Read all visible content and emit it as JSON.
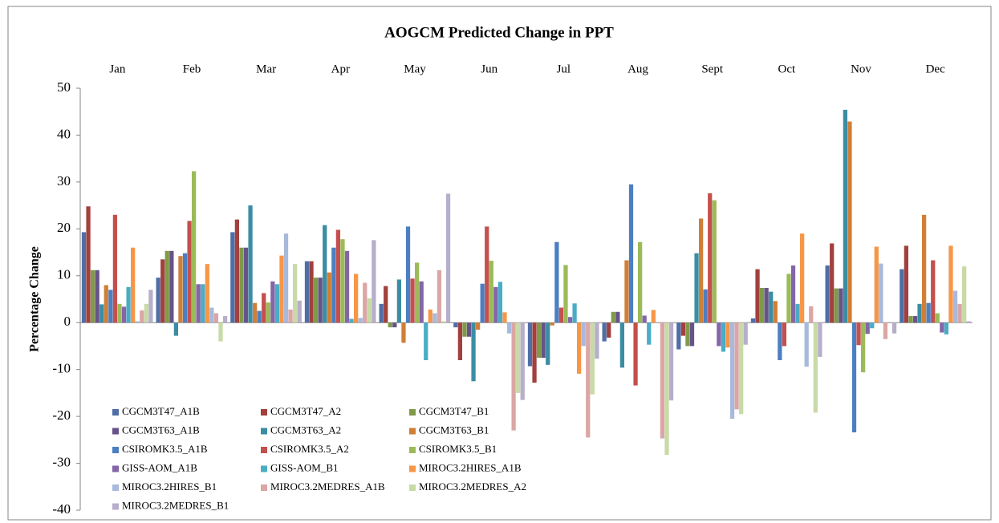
{
  "chart_data": {
    "type": "bar",
    "title": "AOGCM Predicted Change in PPT",
    "y_label": "Percentage Change",
    "categories": [
      "Jan",
      "Feb",
      "Mar",
      "Apr",
      "May",
      "Jun",
      "Jul",
      "Aug",
      "Sept",
      "Oct",
      "Nov",
      "Dec"
    ],
    "ylim": [
      -40,
      50
    ],
    "yticks": [
      -40,
      -30,
      -20,
      -10,
      0,
      10,
      20,
      30,
      40,
      50
    ],
    "series": [
      {
        "name": "CGCM3T47_A1B",
        "color": "#4f6ea6",
        "values": [
          19.3,
          9.6,
          19.3,
          13.1,
          4,
          -1,
          -9.3,
          -4,
          -5.7,
          0.9,
          12.2,
          11.4
        ]
      },
      {
        "name": "CGCM3T47_A2",
        "color": "#a1403d",
        "values": [
          24.8,
          13.5,
          22,
          13.1,
          7.8,
          -8,
          -12.8,
          -3.2,
          -2.8,
          11.4,
          16.9,
          16.4
        ]
      },
      {
        "name": "CGCM3T47_B1",
        "color": "#7f9a48",
        "values": [
          11.2,
          15.3,
          16,
          9.6,
          -1,
          -3,
          -7.5,
          2.3,
          -5,
          7.4,
          7.3,
          1.4
        ]
      },
      {
        "name": "CGCM3T63_A1B",
        "color": "#67538a",
        "values": [
          11.2,
          15.3,
          16,
          9.6,
          -1,
          -3,
          -7.5,
          2.3,
          -5,
          7.4,
          7.3,
          1.4
        ]
      },
      {
        "name": "CGCM3T63_A2",
        "color": "#3b8da3",
        "values": [
          3.9,
          -2.8,
          25,
          20.8,
          9.2,
          -12.5,
          -9,
          -9.6,
          14.8,
          6.6,
          45.4,
          4
        ]
      },
      {
        "name": "CGCM3T63_B1",
        "color": "#d07f36",
        "values": [
          8,
          14.2,
          4.2,
          10.7,
          -4.3,
          -1.5,
          -0.6,
          13.3,
          22.2,
          4.6,
          42.9,
          23
        ]
      },
      {
        "name": "CSIROMK3.5_A1B",
        "color": "#4c7fc1",
        "values": [
          7,
          14.8,
          2.5,
          16,
          20.5,
          8.3,
          17.2,
          29.5,
          7.1,
          -8,
          -23.4,
          4.2
        ]
      },
      {
        "name": "CSIROMK3.5_A2",
        "color": "#c4504d",
        "values": [
          23,
          21.7,
          6.3,
          19.8,
          9.4,
          20.5,
          3.2,
          -13.4,
          27.6,
          -5,
          -4.8,
          13.3
        ]
      },
      {
        "name": "CSIROMK3.5_B1",
        "color": "#9bbb59",
        "values": [
          4,
          32.3,
          4.3,
          17.8,
          12.8,
          13.2,
          12.3,
          17.2,
          26.1,
          10.4,
          -10.6,
          2
        ]
      },
      {
        "name": "GISS-AOM_A1B",
        "color": "#8466a8",
        "values": [
          3.4,
          8.2,
          8.8,
          15.3,
          8.8,
          7.6,
          1.2,
          1.5,
          -5,
          12.2,
          -2.4,
          -2.1
        ]
      },
      {
        "name": "GISS-AOM_B1",
        "color": "#4bacc6",
        "values": [
          7.6,
          8.2,
          8.2,
          0.8,
          -8,
          8.7,
          4.1,
          -4.7,
          -6.2,
          4,
          -1.2,
          -2.5
        ]
      },
      {
        "name": "MIROC3.2HIRES_A1B",
        "color": "#f79646",
        "values": [
          16,
          12.5,
          14.3,
          10.4,
          2.8,
          2.2,
          -10.9,
          2.7,
          -5.3,
          19,
          16.2,
          16.4
        ]
      },
      {
        "name": "MIROC3.2HIRES_B1",
        "color": "#a7b9dc",
        "values": [
          0.3,
          3.2,
          19,
          1,
          2,
          -2.3,
          -5,
          0,
          -20.5,
          -9.4,
          12.6,
          6.8
        ]
      },
      {
        "name": "MIROC3.2MEDRES_A1B",
        "color": "#dba6a5",
        "values": [
          2.6,
          2,
          2.8,
          8.5,
          11.2,
          -23,
          -24.5,
          -24.7,
          -18.5,
          3.5,
          -3.5,
          4
        ]
      },
      {
        "name": "MIROC3.2MEDRES_A2",
        "color": "#c8daa6",
        "values": [
          4,
          -4,
          12.5,
          5.2,
          0.3,
          -15,
          -15.3,
          -28.2,
          -19.5,
          -19.2,
          0,
          12
        ]
      },
      {
        "name": "MIROC3.2MEDRES_B1",
        "color": "#b7aecb",
        "values": [
          7,
          1.4,
          4.7,
          17.6,
          27.5,
          -16.5,
          -7.7,
          -16.6,
          -4.7,
          -7.3,
          -2.3,
          0.3
        ]
      }
    ]
  }
}
